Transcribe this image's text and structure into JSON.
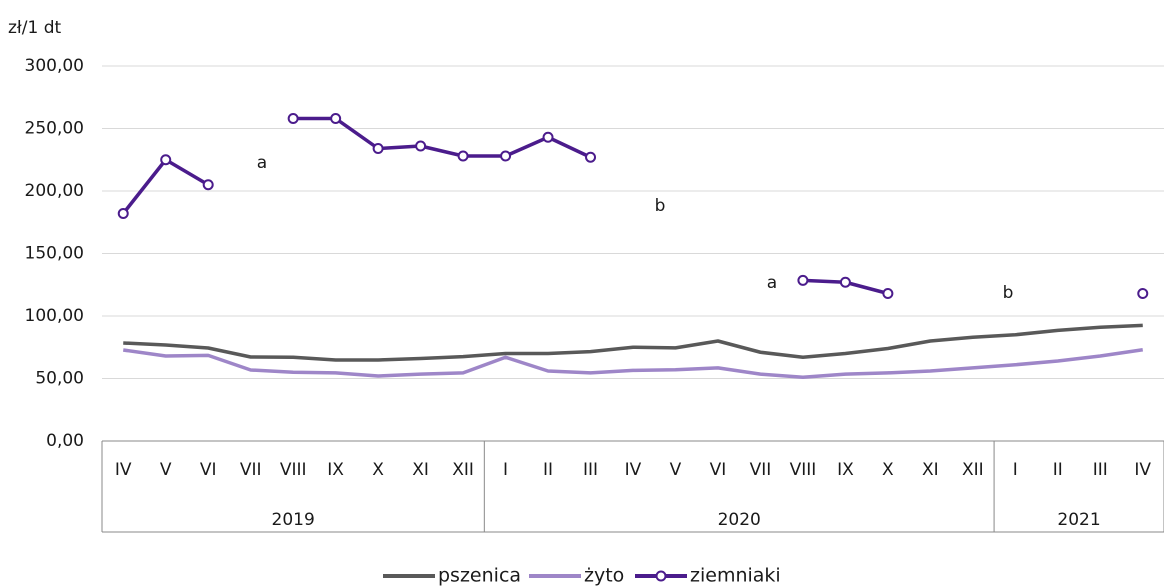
{
  "chart_data": {
    "type": "line",
    "y_label": "zł/1 dt",
    "categories": [
      "IV",
      "V",
      "VI",
      "VII",
      "VIII",
      "IX",
      "X",
      "XI",
      "XII",
      "I",
      "II",
      "III",
      "IV",
      "V",
      "VI",
      "VII",
      "VIII",
      "IX",
      "X",
      "XI",
      "XII",
      "I",
      "II",
      "III",
      "IV"
    ],
    "x_groups": [
      "2019",
      "2020",
      "2021"
    ],
    "series": [
      {
        "name": "pszenica",
        "color": "#595959",
        "markers": false,
        "values": [
          78.4,
          76.8,
          74.4,
          67.2,
          67,
          64.8,
          64.8,
          66,
          67.5,
          70,
          70,
          71.5,
          75,
          74.5,
          80,
          71,
          67,
          70,
          74,
          80,
          83,
          85,
          88.5,
          91,
          92.5
        ]
      },
      {
        "name": "żyto",
        "color": "#9e86c8",
        "markers": false,
        "values": [
          72.8,
          68,
          68.5,
          56.8,
          55,
          54.5,
          52,
          53.5,
          54.5,
          67,
          56,
          54.5,
          56.5,
          57,
          58.5,
          53.5,
          51,
          53.5,
          54.5,
          56,
          58.5,
          61,
          64,
          68,
          73
        ]
      },
      {
        "name": "ziemniaki",
        "color": "#4b1c8c",
        "markers": true,
        "values": [
          182,
          225,
          205,
          null,
          258,
          258,
          234,
          236,
          228,
          228,
          243,
          227,
          null,
          null,
          null,
          null,
          128.5,
          127,
          118,
          null,
          null,
          null,
          null,
          null,
          118
        ]
      }
    ],
    "annotations": [
      "a",
      "b",
      "a",
      "b"
    ],
    "ylim": [
      0,
      300
    ],
    "yticks": [
      {
        "value": 0,
        "label": "0,00"
      },
      {
        "value": 50,
        "label": "50,00"
      },
      {
        "value": 100,
        "label": "100,00"
      },
      {
        "value": 150,
        "label": "150,00"
      },
      {
        "value": 200,
        "label": "200,00"
      },
      {
        "value": 250,
        "label": "250,00"
      },
      {
        "value": 300,
        "label": "300,00"
      }
    ],
    "grid": true
  }
}
